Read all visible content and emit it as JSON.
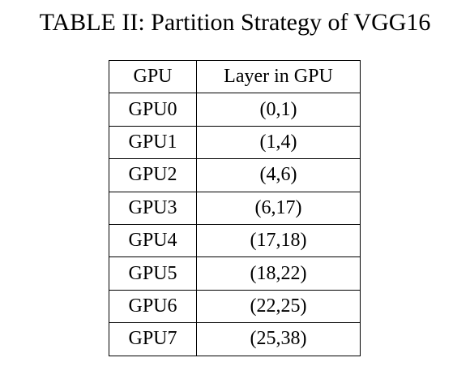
{
  "caption": "TABLE II: Partition Strategy of VGG16",
  "table": {
    "headers": [
      "GPU",
      "Layer in GPU"
    ],
    "rows": [
      [
        "GPU0",
        "(0,1)"
      ],
      [
        "GPU1",
        "(1,4)"
      ],
      [
        "GPU2",
        "(4,6)"
      ],
      [
        "GPU3",
        "(6,17)"
      ],
      [
        "GPU4",
        "(17,18)"
      ],
      [
        "GPU5",
        "(18,22)"
      ],
      [
        "GPU6",
        "(22,25)"
      ],
      [
        "GPU7",
        "(25,38)"
      ]
    ]
  }
}
